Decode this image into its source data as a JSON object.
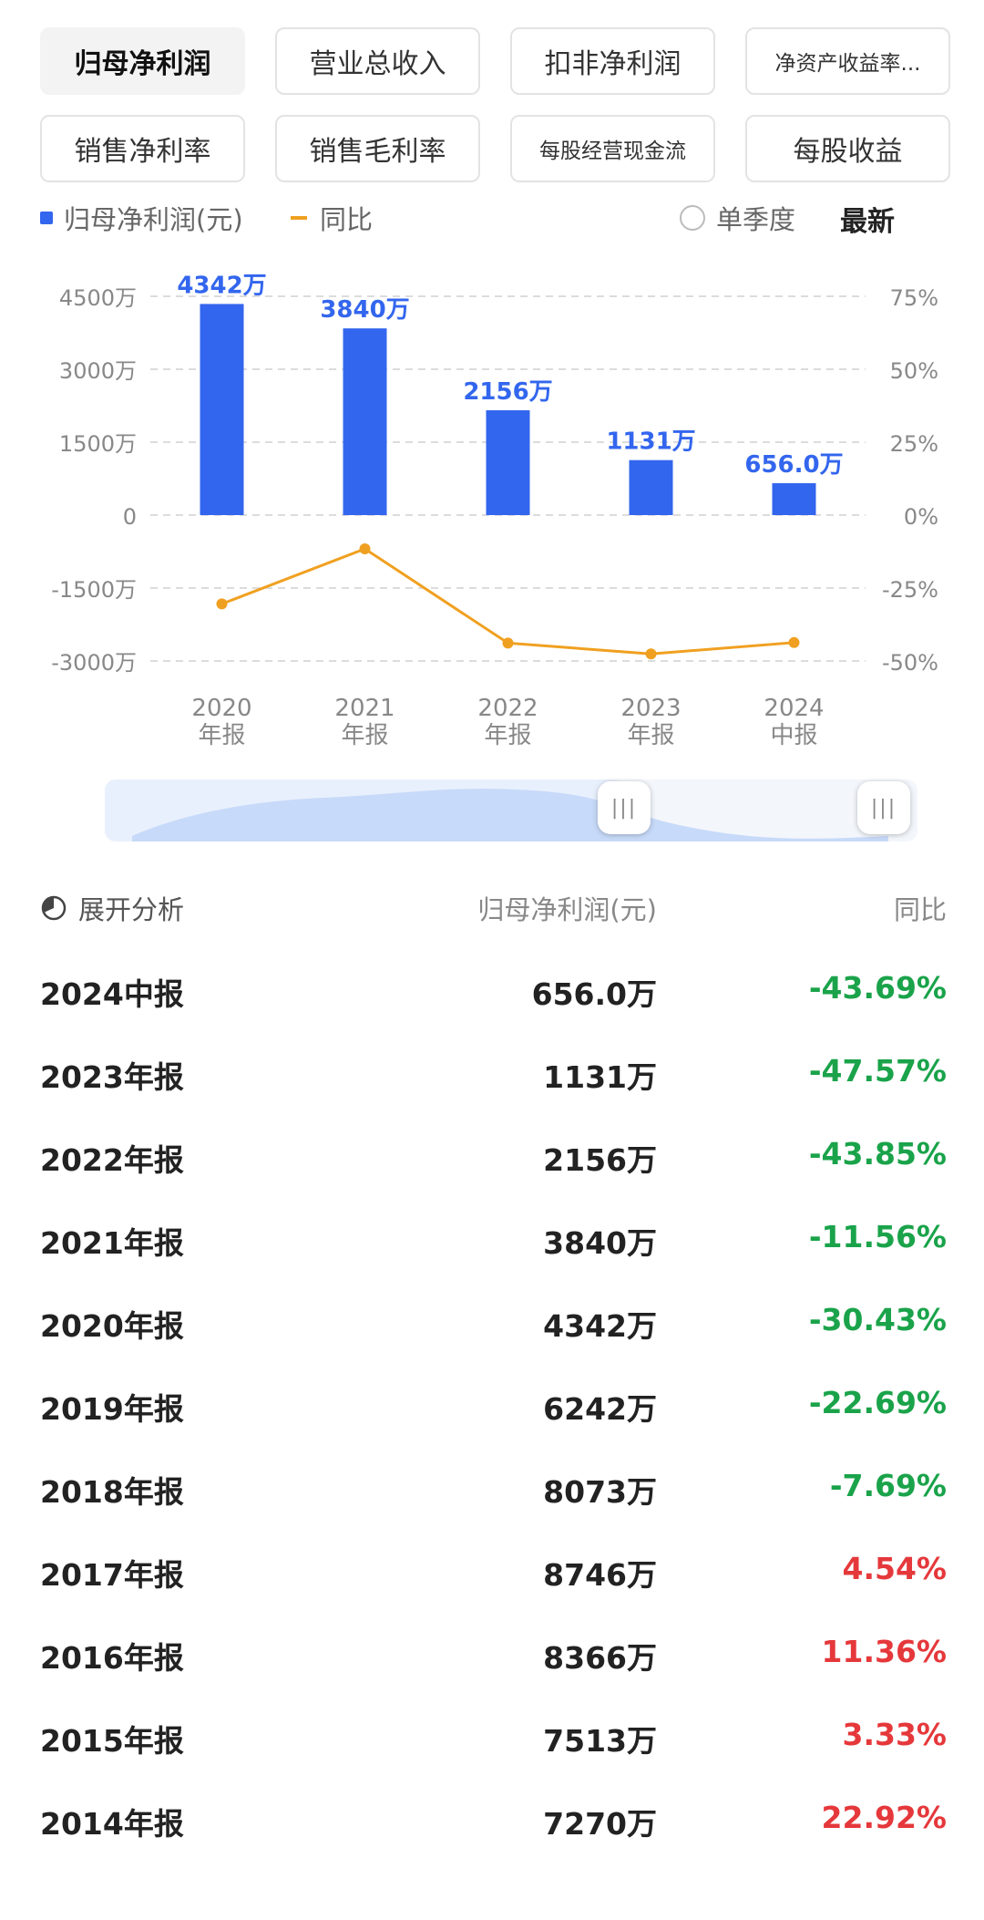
{
  "tabs": [
    {
      "label": "归母净利润",
      "active": true
    },
    {
      "label": "营业总收入"
    },
    {
      "label": "扣非净利润"
    },
    {
      "label": "净资产收益率..."
    },
    {
      "label": "销售净利率"
    },
    {
      "label": "销售毛利率"
    },
    {
      "label": "每股经营现金流"
    },
    {
      "label": "每股收益"
    }
  ],
  "legend": {
    "bar_label": "归母净利润(元)",
    "line_label": "同比",
    "single_quarter": "单季度",
    "latest": "最新"
  },
  "colors": {
    "bar": "#3366ee",
    "line": "#f0a020",
    "negative": "#1aa34a",
    "positive": "#e5383b"
  },
  "chart_data": {
    "type": "bar",
    "categories": [
      "2020\n年报",
      "2021\n年报",
      "2022\n年报",
      "2023\n年报",
      "2024\n中报"
    ],
    "series": [
      {
        "name": "归母净利润(元)",
        "type": "bar",
        "values": [
          4342,
          3840,
          2156,
          1131,
          656.0
        ],
        "labels": [
          "4342万",
          "3840万",
          "2156万",
          "1131万",
          "656.0万"
        ]
      },
      {
        "name": "同比",
        "type": "line",
        "values": [
          -30.43,
          -11.56,
          -43.85,
          -47.57,
          -43.69
        ]
      }
    ],
    "y_left": {
      "ticks": [
        "4500万",
        "3000万",
        "1500万",
        "0",
        "-1500万",
        "-3000万"
      ],
      "ylim": [
        -3000,
        4500
      ]
    },
    "y_right": {
      "ticks": [
        "75%",
        "50%",
        "25%",
        "0%",
        "-25%",
        "-50%"
      ],
      "ylim": [
        -50,
        75
      ]
    }
  },
  "table": {
    "header": {
      "analysis": "展开分析",
      "value": "归母净利润(元)",
      "yoy": "同比"
    },
    "rows": [
      {
        "period": "2024中报",
        "value": "656.0万",
        "yoy": "-43.69%"
      },
      {
        "period": "2023年报",
        "value": "1131万",
        "yoy": "-47.57%"
      },
      {
        "period": "2022年报",
        "value": "2156万",
        "yoy": "-43.85%"
      },
      {
        "period": "2021年报",
        "value": "3840万",
        "yoy": "-11.56%"
      },
      {
        "period": "2020年报",
        "value": "4342万",
        "yoy": "-30.43%"
      },
      {
        "period": "2019年报",
        "value": "6242万",
        "yoy": "-22.69%"
      },
      {
        "period": "2018年报",
        "value": "8073万",
        "yoy": "-7.69%"
      },
      {
        "period": "2017年报",
        "value": "8746万",
        "yoy": "4.54%"
      },
      {
        "period": "2016年报",
        "value": "8366万",
        "yoy": "11.36%"
      },
      {
        "period": "2015年报",
        "value": "7513万",
        "yoy": "3.33%"
      },
      {
        "period": "2014年报",
        "value": "7270万",
        "yoy": "22.92%"
      }
    ]
  }
}
